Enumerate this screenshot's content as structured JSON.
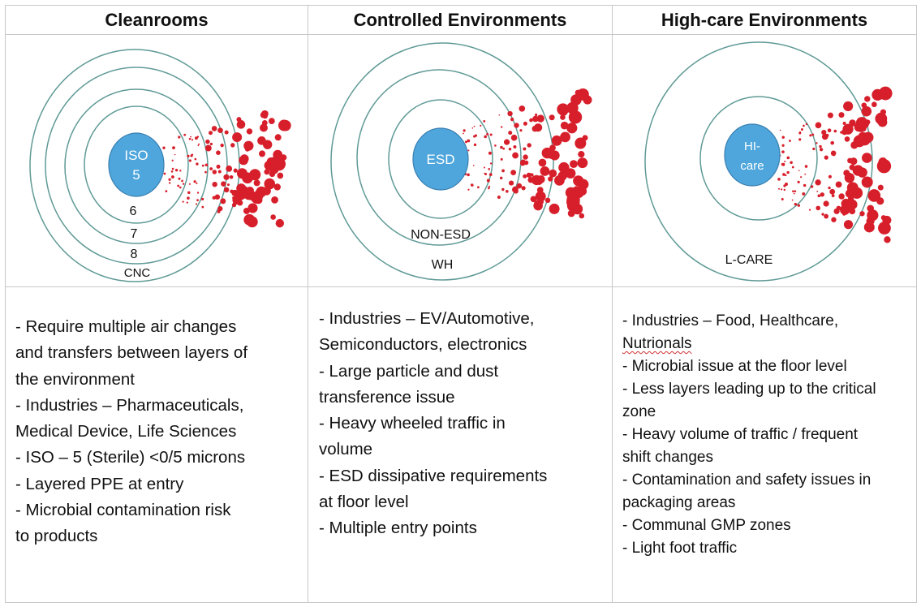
{
  "columns": [
    {
      "title": "Cleanrooms",
      "center_label": [
        "ISO",
        "5"
      ],
      "ring_labels": [
        "6",
        "7",
        "8",
        "CNC"
      ],
      "bullets": [
        "- Require multiple air changes",
        "and transfers between layers of",
        "the environment",
        "- Industries – Pharmaceuticals,",
        "Medical Device, Life Sciences",
        "- ISO – 5 (Sterile) <0/5 microns",
        "- Layered PPE at entry",
        "- Microbial contamination risk",
        "to products"
      ]
    },
    {
      "title": "Controlled Environments",
      "center_label": [
        "ESD"
      ],
      "ring_labels": [
        "NON-ESD",
        "WH"
      ],
      "bullets": [
        "- Industries – EV/Automotive,",
        "Semiconductors, electronics",
        "- Large particle and dust",
        "transference issue",
        "- Heavy wheeled traffic in",
        "volume",
        "- ESD dissipative requirements",
        "at floor level",
        "- Multiple entry points"
      ]
    },
    {
      "title": "High-care Environments",
      "center_label": [
        "HI-",
        "care"
      ],
      "ring_labels": [
        "L-CARE"
      ],
      "bullets": [
        "- Industries – Food, Healthcare,",
        "Nutrionals",
        "- Microbial issue at the floor level",
        "- Less layers leading up to the critical",
        "zone",
        "- Heavy volume of traffic / frequent",
        "shift changes",
        "- Contamination and safety issues in",
        "packaging areas",
        "- Communal GMP zones",
        "- Light foot traffic"
      ]
    }
  ],
  "colors": {
    "ring": "#5f9a96",
    "center": "#4ea6dc",
    "splatter": "#d71f2b"
  }
}
